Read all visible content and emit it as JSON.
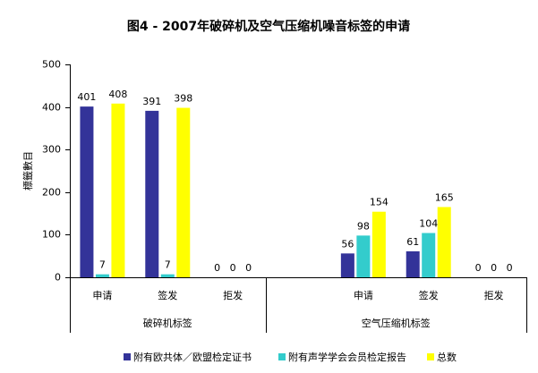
{
  "chart_data": {
    "type": "bar",
    "title": "图4 - 2007年破碎机及空气压缩机噪音标签的申请",
    "y_label": "標籤數目",
    "groups": [
      {
        "label": "破碎机标签",
        "categories": [
          "申请",
          "签发",
          "拒发"
        ]
      },
      {
        "label": "空气压缩机标签",
        "categories": [
          null,
          "申请",
          "签发",
          "拒发"
        ]
      }
    ],
    "series": [
      {
        "name": "附有欧共体／欧盟检定证书",
        "color": "#333399",
        "values": [
          401,
          391,
          0,
          null,
          56,
          61,
          0
        ]
      },
      {
        "name": "附有声学学会会员检定报告",
        "color": "#33cccc",
        "values": [
          7,
          7,
          0,
          null,
          98,
          104,
          0
        ]
      },
      {
        "name": "总数",
        "color": "#ffff00",
        "values": [
          408,
          398,
          0,
          null,
          154,
          165,
          0
        ]
      }
    ],
    "ylim": [
      0,
      500
    ],
    "yticks": [
      0,
      100,
      200,
      300,
      400,
      500
    ],
    "grid": false,
    "legend": "bottom"
  }
}
